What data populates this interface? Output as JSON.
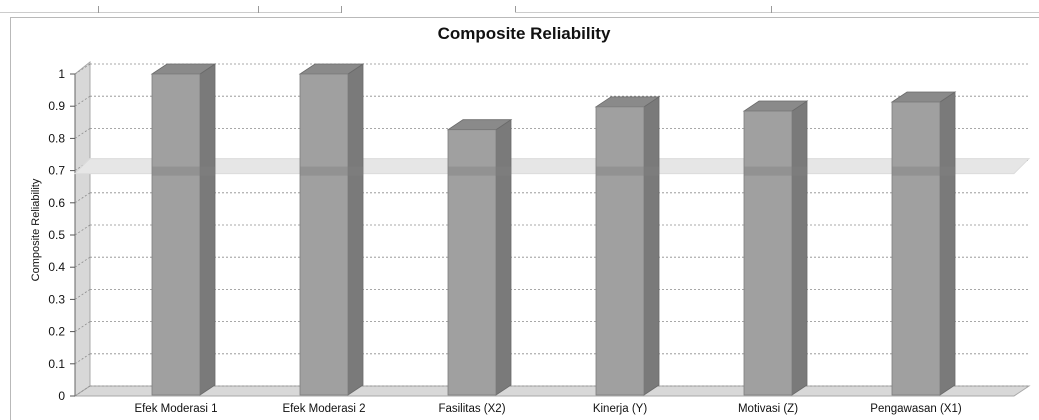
{
  "chart_data": {
    "type": "bar",
    "title": "Composite Reliability",
    "xlabel": "",
    "ylabel": "Composite Reliability",
    "categories": [
      "Efek Moderasi 1",
      "Efek Moderasi 2",
      "Fasilitas (X2)",
      "Kinerja (Y)",
      "Motivasi (Z)",
      "Pengawasan (X1)"
    ],
    "values": [
      1.0,
      1.0,
      0.827,
      0.898,
      0.885,
      0.913
    ],
    "ylim": [
      0,
      1
    ],
    "yticks": [
      "0",
      "0.1",
      "0.2",
      "0.3",
      "0.4",
      "0.5",
      "0.6",
      "0.7",
      "0.8",
      "0.9",
      "1"
    ],
    "threshold": 0.7,
    "grid": true,
    "style": "3d-bars",
    "colors": {
      "bar_front": "#a0a0a0",
      "bar_side": "#7a7a7a",
      "bar_top": "#8a8a8a",
      "threshold": "#e6e6e6",
      "wall": "#d8d8d8",
      "grid": "#8c8c8c"
    }
  }
}
